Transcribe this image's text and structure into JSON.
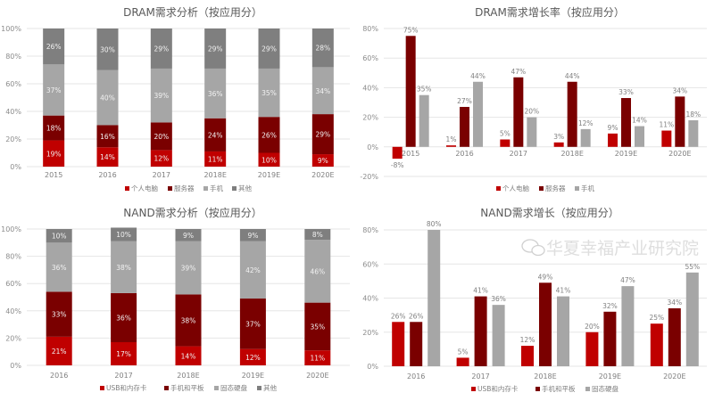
{
  "colors": {
    "pc_usb": "#c00000",
    "server_phone": "#7a0000",
    "light_gray": "#a6a6a6",
    "dark_gray": "#7f7f7f",
    "grid": "#e6e6e6"
  },
  "watermark": {
    "text": "华夏幸福产业研究院",
    "icon": "wechat-icon"
  },
  "chart_data": [
    {
      "type": "bar",
      "stacked": true,
      "title": "DRAM需求分析（按应用分）",
      "categories": [
        "2015",
        "2016",
        "2017",
        "2018E",
        "2019E",
        "2020E"
      ],
      "ylim": [
        0,
        100
      ],
      "yticks": [
        "0%",
        "20%",
        "40%",
        "60%",
        "80%",
        "100%"
      ],
      "grid": true,
      "legend": "bottom",
      "series": [
        {
          "name": "个人电脑",
          "color": "#c00000",
          "values": [
            19,
            14,
            12,
            11,
            10,
            9
          ]
        },
        {
          "name": "服务器",
          "color": "#7a0000",
          "values": [
            18,
            16,
            20,
            24,
            26,
            29
          ]
        },
        {
          "name": "手机",
          "color": "#a6a6a6",
          "values": [
            37,
            40,
            39,
            36,
            35,
            34
          ]
        },
        {
          "name": "其他",
          "color": "#7f7f7f",
          "values": [
            26,
            30,
            29,
            29,
            29,
            28
          ]
        }
      ]
    },
    {
      "type": "bar",
      "stacked": false,
      "title": "DRAM需求增长率（按应用分）",
      "categories": [
        "2015",
        "2016",
        "2017",
        "2018E",
        "2019E",
        "2020E"
      ],
      "ylim": [
        -20,
        80
      ],
      "yticks": [
        "-20%",
        "0%",
        "20%",
        "40%",
        "60%",
        "80%"
      ],
      "grid": true,
      "legend": "bottom",
      "series": [
        {
          "name": "个人电脑",
          "color": "#c00000",
          "values": [
            -8,
            1,
            5,
            3,
            9,
            11
          ]
        },
        {
          "name": "服务器",
          "color": "#7a0000",
          "values": [
            75,
            27,
            47,
            44,
            33,
            34
          ]
        },
        {
          "name": "手机",
          "color": "#a6a6a6",
          "values": [
            35,
            44,
            20,
            12,
            14,
            18
          ]
        }
      ]
    },
    {
      "type": "bar",
      "stacked": true,
      "title": "NAND需求分析（按应用分）",
      "categories": [
        "2016",
        "2017",
        "2018E",
        "2019E",
        "2020E"
      ],
      "ylim": [
        0,
        100
      ],
      "yticks": [
        "0%",
        "20%",
        "40%",
        "60%",
        "80%",
        "100%"
      ],
      "grid": true,
      "legend": "bottom",
      "series": [
        {
          "name": "USB和内存卡",
          "color": "#c00000",
          "values": [
            21,
            17,
            14,
            12,
            11
          ]
        },
        {
          "name": "手机和平板",
          "color": "#7a0000",
          "values": [
            33,
            36,
            38,
            37,
            35
          ]
        },
        {
          "name": "固态硬盘",
          "color": "#a6a6a6",
          "values": [
            36,
            38,
            39,
            42,
            46
          ]
        },
        {
          "name": "其他",
          "color": "#7f7f7f",
          "values": [
            10,
            10,
            9,
            9,
            8
          ]
        }
      ]
    },
    {
      "type": "bar",
      "stacked": false,
      "title": "NAND需求增长（按应用分）",
      "categories": [
        "2016",
        "2017",
        "2018E",
        "2019E",
        "2020E"
      ],
      "ylim": [
        0,
        80
      ],
      "yticks": [
        "0%",
        "20%",
        "40%",
        "60%",
        "80%"
      ],
      "grid": true,
      "legend": "bottom",
      "series": [
        {
          "name": "USB和内存卡",
          "color": "#c00000",
          "values": [
            26,
            5,
            12,
            20,
            25
          ]
        },
        {
          "name": "手机和平板",
          "color": "#7a0000",
          "values": [
            26,
            41,
            49,
            32,
            34
          ]
        },
        {
          "name": "固态硬盘",
          "color": "#a6a6a6",
          "values": [
            80,
            36,
            41,
            47,
            55
          ]
        }
      ]
    }
  ]
}
